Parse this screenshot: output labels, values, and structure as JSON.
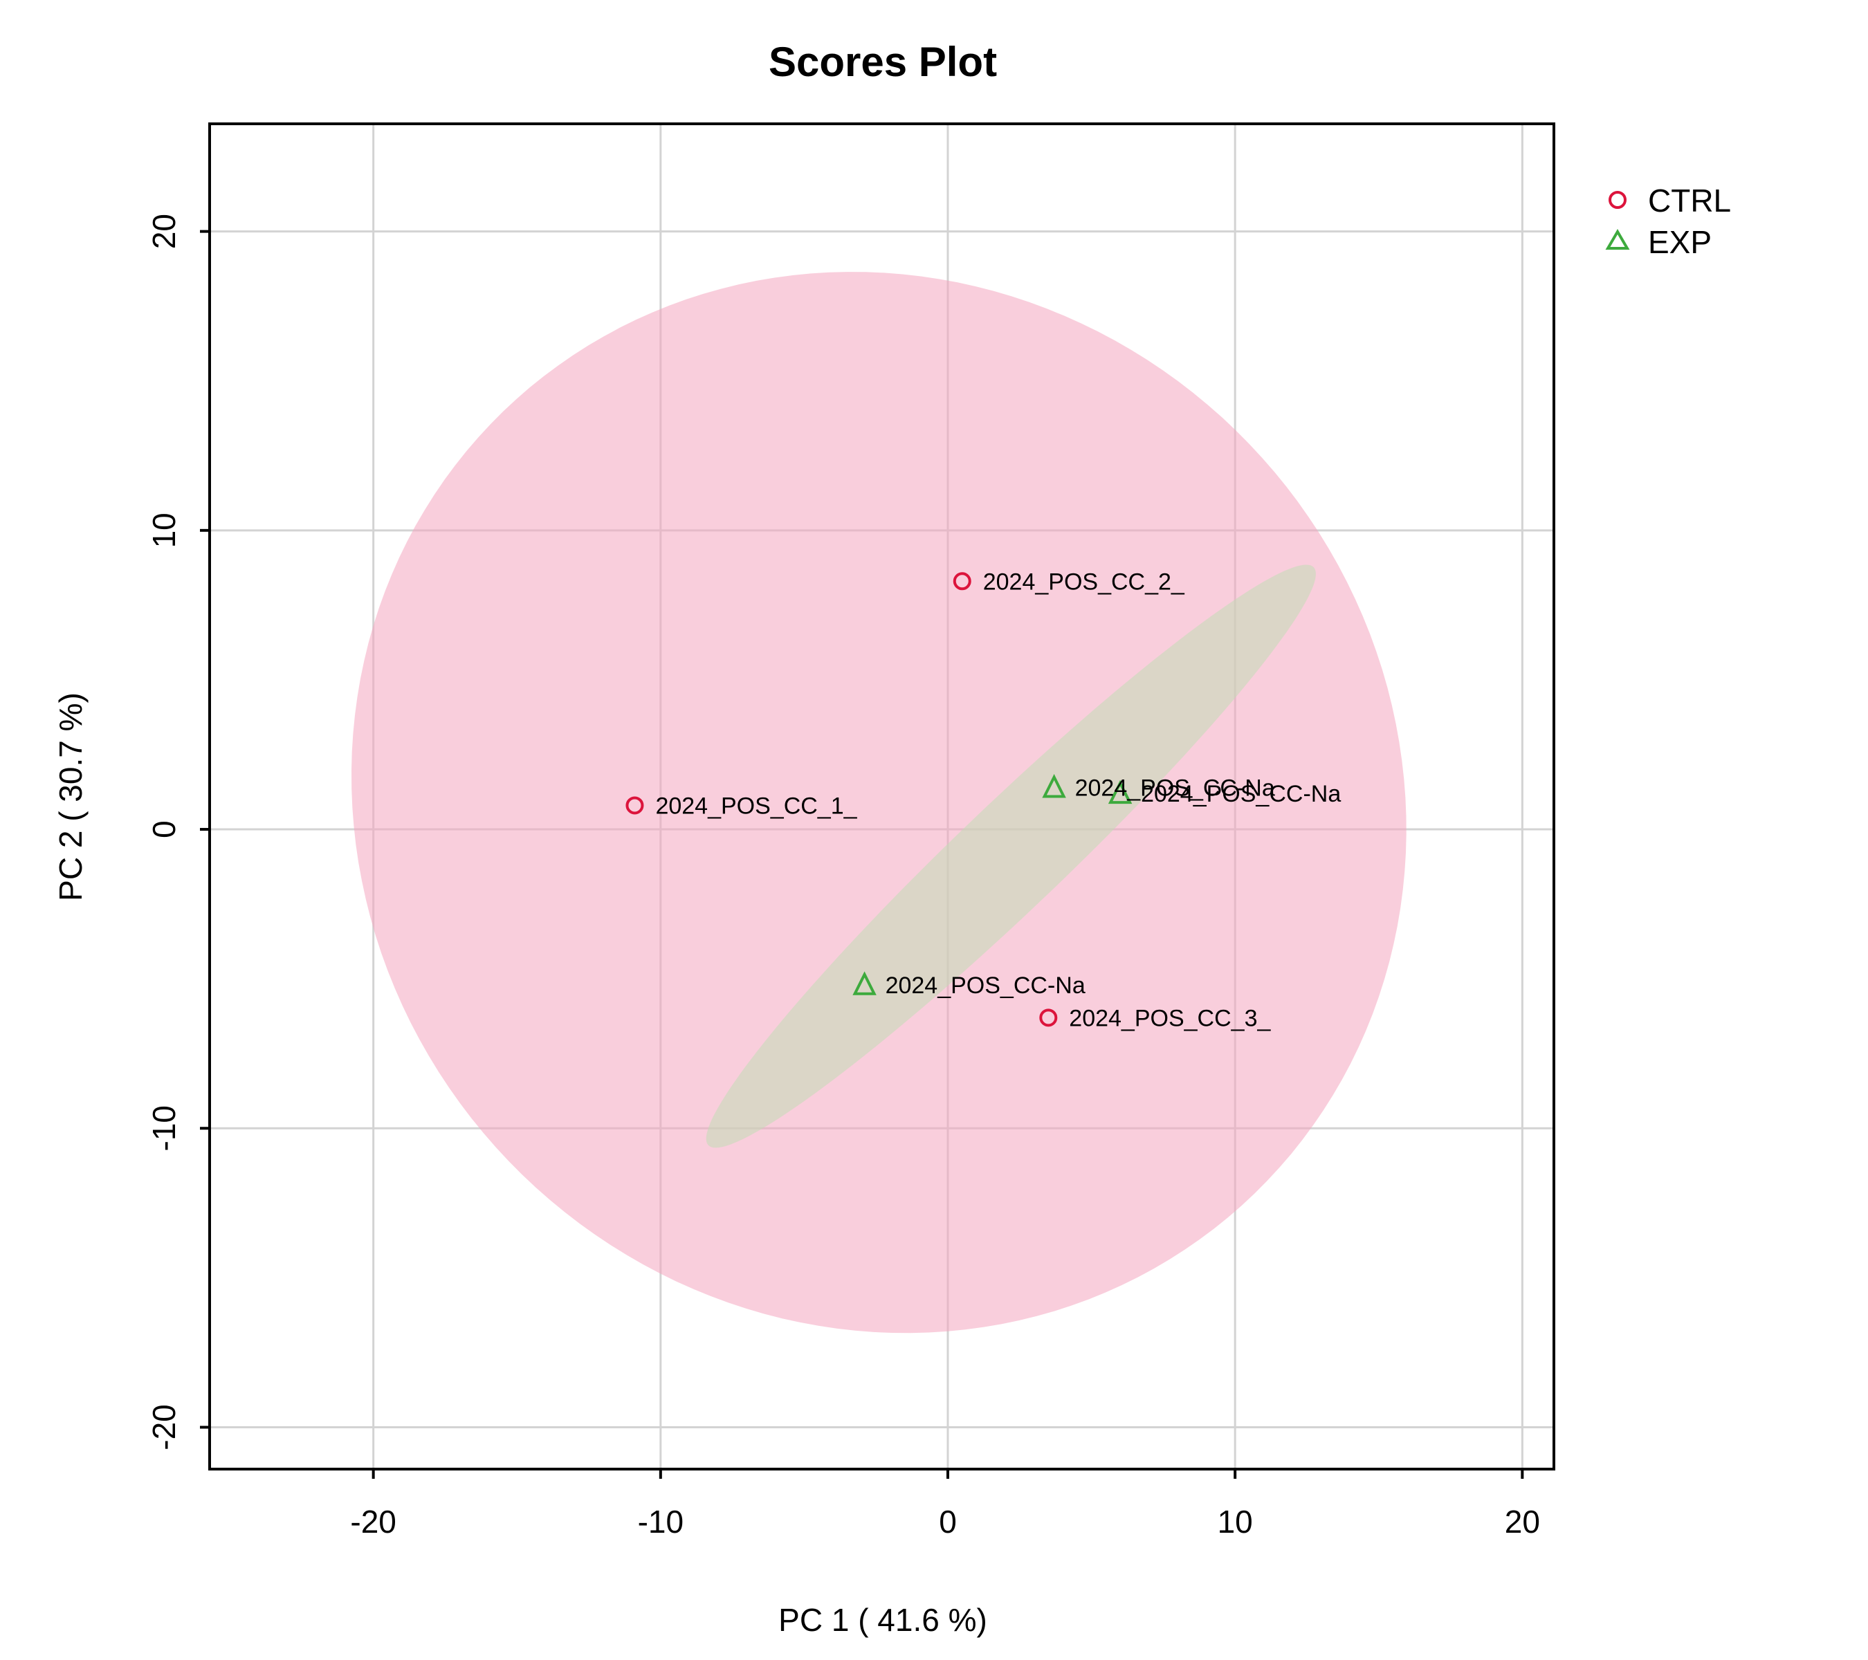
{
  "chart_data": {
    "type": "scatter",
    "title": "Scores Plot",
    "xlabel": "PC 1 ( 41.6 %)",
    "ylabel": "PC 2 ( 30.7 %)",
    "xlim": [
      -25.7,
      21.1
    ],
    "ylim": [
      -21.4,
      23.6
    ],
    "x_ticks": [
      -20,
      -10,
      0,
      10,
      20
    ],
    "y_ticks": [
      -20,
      -10,
      0,
      10,
      20
    ],
    "grid": true,
    "legend_position": "top-right, outside plot",
    "series": [
      {
        "name": "CTRL",
        "color": "#DC143C",
        "fill": "#F4A6BF",
        "marker": "circle",
        "points": [
          {
            "x": 0.5,
            "y": 8.3,
            "label": "2024_POS_CC_2_"
          },
          {
            "x": -10.9,
            "y": 0.8,
            "label": "2024_POS_CC_1_"
          },
          {
            "x": 3.5,
            "y": -6.3,
            "label": "2024_POS_CC_3_"
          }
        ],
        "ellipse": {
          "cx": -2.4,
          "cy": 0.9,
          "a": 18.6,
          "b": 17.5,
          "angle_deg": -28
        }
      },
      {
        "name": "EXP",
        "color": "#3DAA3D",
        "fill": "#C2DDB6",
        "marker": "triangle",
        "points": [
          {
            "x": 3.7,
            "y": 1.4,
            "label": "2024_POS_CC-Na"
          },
          {
            "x": 6.0,
            "y": 1.2,
            "label": "2024_POS_CC-Na"
          },
          {
            "x": -2.9,
            "y": -5.2,
            "label": "2024_POS_CC-Na"
          }
        ],
        "ellipse": {
          "cx": 2.2,
          "cy": -0.9,
          "a": 14.3,
          "b": 1.8,
          "angle_deg": 42.5
        }
      }
    ]
  }
}
